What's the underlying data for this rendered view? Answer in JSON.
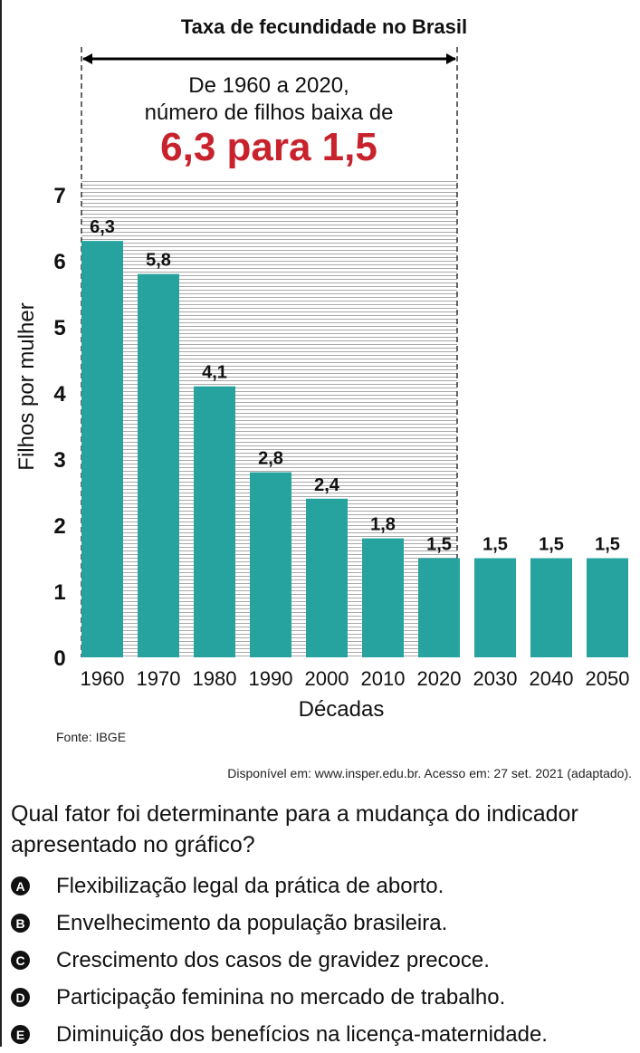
{
  "chart_data": {
    "type": "bar",
    "title": "Taxa de fecundidade no Brasil",
    "xlabel": "Décadas",
    "ylabel": "Filhos por mulher",
    "categories": [
      "1960",
      "1970",
      "1980",
      "1990",
      "2000",
      "2010",
      "2020",
      "2030",
      "2040",
      "2050"
    ],
    "values": [
      6.3,
      5.8,
      4.1,
      2.8,
      2.4,
      1.8,
      1.5,
      1.5,
      1.5,
      1.5
    ],
    "value_labels": [
      "6,3",
      "5,8",
      "4,1",
      "2,8",
      "2,4",
      "1,8",
      "1,5",
      "1,5",
      "1,5",
      "1,5"
    ],
    "yticks": [
      0,
      1,
      2,
      3,
      4,
      5,
      6,
      7
    ],
    "ylim": [
      0,
      7
    ],
    "grid": false,
    "bar_color": "#26a39e",
    "highlight_range": [
      "1960",
      "2020"
    ],
    "annotation": {
      "line1": "De 1960 a 2020,",
      "line2": "número de filhos baixa de",
      "emphasis": "6,3 para 1,5",
      "emphasis_color": "#c8232c"
    }
  },
  "source": "Fonte: IBGE",
  "availability": "Disponível em: www.insper.edu.br. Acesso em: 27 set. 2021 (adaptado).",
  "question": "Qual fator foi determinante para a mudança do indicador apresentado no gráfico?",
  "options": [
    {
      "letter": "A",
      "text": "Flexibilização legal da prática de aborto."
    },
    {
      "letter": "B",
      "text": "Envelhecimento da população brasileira."
    },
    {
      "letter": "C",
      "text": "Crescimento dos casos de gravidez precoce."
    },
    {
      "letter": "D",
      "text": "Participação feminina no mercado de trabalho."
    },
    {
      "letter": "E",
      "text": "Diminuição dos benefícios na licença-maternidade."
    }
  ]
}
